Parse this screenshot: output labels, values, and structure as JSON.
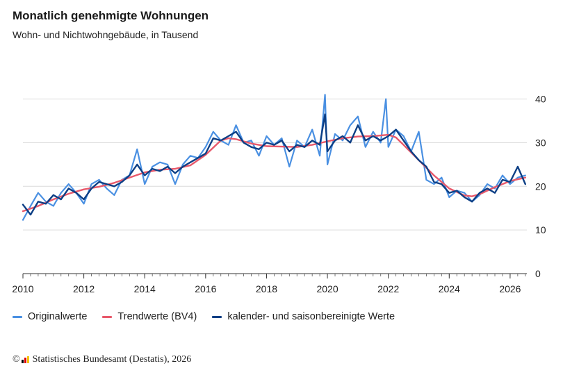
{
  "header": {
    "title": "Monatlich genehmigte Wohnungen",
    "subtitle": "Wohn- und Nichtwohngebäude, in Tausend"
  },
  "legend": {
    "items": [
      {
        "label": "Originalwerte",
        "color": "#4a90e2"
      },
      {
        "label": "Trendwerte (BV4)",
        "color": "#e8596b"
      },
      {
        "label": "kalender- und saisonbereinigte Werte",
        "color": "#0d3f85"
      }
    ]
  },
  "source": {
    "copyright_symbol": "©",
    "text": "Statistisches Bundesamt (Destatis), 2026"
  },
  "chart_data": {
    "type": "line",
    "title": "Monatlich genehmigte Wohnungen",
    "subtitle": "Wohn- und Nichtwohngebäude, in Tausend",
    "xlabel": "",
    "ylabel": "",
    "xlim": [
      2010,
      2026.55
    ],
    "ylim": [
      0,
      42
    ],
    "x_ticks": [
      "2010",
      "2012",
      "2014",
      "2016",
      "2018",
      "2020",
      "2022",
      "2024",
      "2026"
    ],
    "y_ticks": [
      "0",
      "10",
      "20",
      "30",
      "40"
    ],
    "grid": "horizontal",
    "legend_position": "bottom",
    "series": [
      {
        "name": "Originalwerte",
        "color": "#4a90e2",
        "points": [
          [
            2010.0,
            12.3
          ],
          [
            2010.25,
            15.5
          ],
          [
            2010.5,
            18.5
          ],
          [
            2010.75,
            16.5
          ],
          [
            2011.0,
            15.5
          ],
          [
            2011.25,
            18.5
          ],
          [
            2011.5,
            20.5
          ],
          [
            2011.75,
            18.5
          ],
          [
            2012.0,
            16.0
          ],
          [
            2012.25,
            20.5
          ],
          [
            2012.5,
            21.5
          ],
          [
            2012.75,
            19.5
          ],
          [
            2013.0,
            18.0
          ],
          [
            2013.25,
            21.5
          ],
          [
            2013.5,
            22.5
          ],
          [
            2013.75,
            28.5
          ],
          [
            2014.0,
            20.5
          ],
          [
            2014.25,
            24.5
          ],
          [
            2014.5,
            25.5
          ],
          [
            2014.75,
            25.0
          ],
          [
            2015.0,
            20.5
          ],
          [
            2015.25,
            25.0
          ],
          [
            2015.5,
            27.0
          ],
          [
            2015.75,
            26.5
          ],
          [
            2016.0,
            29.0
          ],
          [
            2016.25,
            32.5
          ],
          [
            2016.5,
            30.5
          ],
          [
            2016.75,
            29.5
          ],
          [
            2017.0,
            34.0
          ],
          [
            2017.25,
            30.0
          ],
          [
            2017.5,
            30.5
          ],
          [
            2017.75,
            27.0
          ],
          [
            2018.0,
            31.5
          ],
          [
            2018.25,
            29.5
          ],
          [
            2018.5,
            31.0
          ],
          [
            2018.75,
            24.5
          ],
          [
            2019.0,
            30.5
          ],
          [
            2019.25,
            29.0
          ],
          [
            2019.5,
            33.0
          ],
          [
            2019.75,
            27.0
          ],
          [
            2019.92,
            41.0
          ],
          [
            2020.0,
            25.0
          ],
          [
            2020.25,
            32.0
          ],
          [
            2020.5,
            30.5
          ],
          [
            2020.75,
            34.0
          ],
          [
            2021.0,
            36.0
          ],
          [
            2021.25,
            29.0
          ],
          [
            2021.5,
            32.5
          ],
          [
            2021.75,
            30.0
          ],
          [
            2021.92,
            40.0
          ],
          [
            2022.0,
            29.0
          ],
          [
            2022.25,
            33.0
          ],
          [
            2022.5,
            31.5
          ],
          [
            2022.75,
            28.0
          ],
          [
            2023.0,
            32.5
          ],
          [
            2023.25,
            21.5
          ],
          [
            2023.5,
            20.5
          ],
          [
            2023.75,
            22.0
          ],
          [
            2024.0,
            17.5
          ],
          [
            2024.25,
            19.0
          ],
          [
            2024.5,
            18.5
          ],
          [
            2024.75,
            16.5
          ],
          [
            2025.0,
            18.0
          ],
          [
            2025.25,
            20.5
          ],
          [
            2025.5,
            19.5
          ],
          [
            2025.75,
            22.5
          ],
          [
            2026.0,
            20.5
          ],
          [
            2026.25,
            22.0
          ],
          [
            2026.5,
            22.5
          ]
        ]
      },
      {
        "name": "Trendwerte (BV4)",
        "color": "#e8596b",
        "points": [
          [
            2010.0,
            14.3
          ],
          [
            2010.5,
            15.5
          ],
          [
            2011.0,
            17.0
          ],
          [
            2011.5,
            18.3
          ],
          [
            2012.0,
            19.3
          ],
          [
            2012.5,
            19.9
          ],
          [
            2013.0,
            20.8
          ],
          [
            2013.5,
            22.0
          ],
          [
            2014.0,
            23.2
          ],
          [
            2014.5,
            23.8
          ],
          [
            2015.0,
            24.0
          ],
          [
            2015.5,
            24.8
          ],
          [
            2016.0,
            27.2
          ],
          [
            2016.5,
            30.5
          ],
          [
            2016.75,
            31.0
          ],
          [
            2017.0,
            30.8
          ],
          [
            2017.5,
            29.8
          ],
          [
            2018.0,
            29.2
          ],
          [
            2018.5,
            29.1
          ],
          [
            2019.0,
            29.0
          ],
          [
            2019.5,
            29.5
          ],
          [
            2020.0,
            30.3
          ],
          [
            2020.5,
            31.0
          ],
          [
            2021.0,
            31.4
          ],
          [
            2021.5,
            31.5
          ],
          [
            2022.0,
            31.8
          ],
          [
            2022.25,
            31.2
          ],
          [
            2022.5,
            29.5
          ],
          [
            2023.0,
            26.0
          ],
          [
            2023.5,
            22.5
          ],
          [
            2024.0,
            19.5
          ],
          [
            2024.5,
            17.9
          ],
          [
            2024.75,
            17.7
          ],
          [
            2025.0,
            18.2
          ],
          [
            2025.5,
            19.8
          ],
          [
            2026.0,
            21.2
          ],
          [
            2026.5,
            22.0
          ]
        ]
      },
      {
        "name": "kalender- und saisonbereinigte Werte",
        "color": "#0d3f85",
        "points": [
          [
            2010.0,
            15.8
          ],
          [
            2010.25,
            13.5
          ],
          [
            2010.5,
            16.5
          ],
          [
            2010.75,
            16.0
          ],
          [
            2011.0,
            18.0
          ],
          [
            2011.25,
            17.0
          ],
          [
            2011.5,
            19.5
          ],
          [
            2011.75,
            18.5
          ],
          [
            2012.0,
            17.0
          ],
          [
            2012.25,
            19.5
          ],
          [
            2012.5,
            21.0
          ],
          [
            2012.75,
            20.5
          ],
          [
            2013.0,
            20.0
          ],
          [
            2013.25,
            21.0
          ],
          [
            2013.5,
            22.5
          ],
          [
            2013.75,
            25.0
          ],
          [
            2014.0,
            22.5
          ],
          [
            2014.25,
            24.0
          ],
          [
            2014.5,
            23.5
          ],
          [
            2014.75,
            24.5
          ],
          [
            2015.0,
            23.0
          ],
          [
            2015.25,
            24.5
          ],
          [
            2015.5,
            25.5
          ],
          [
            2015.75,
            26.5
          ],
          [
            2016.0,
            27.5
          ],
          [
            2016.25,
            31.0
          ],
          [
            2016.5,
            30.5
          ],
          [
            2016.75,
            31.5
          ],
          [
            2017.0,
            32.5
          ],
          [
            2017.25,
            30.0
          ],
          [
            2017.5,
            29.0
          ],
          [
            2017.75,
            28.5
          ],
          [
            2018.0,
            30.0
          ],
          [
            2018.25,
            29.5
          ],
          [
            2018.5,
            30.5
          ],
          [
            2018.75,
            28.0
          ],
          [
            2019.0,
            29.5
          ],
          [
            2019.25,
            29.0
          ],
          [
            2019.5,
            30.5
          ],
          [
            2019.75,
            29.5
          ],
          [
            2019.92,
            36.5
          ],
          [
            2020.0,
            28.0
          ],
          [
            2020.25,
            30.5
          ],
          [
            2020.5,
            31.5
          ],
          [
            2020.75,
            30.0
          ],
          [
            2021.0,
            34.0
          ],
          [
            2021.25,
            30.5
          ],
          [
            2021.5,
            31.5
          ],
          [
            2021.75,
            30.5
          ],
          [
            2022.0,
            31.5
          ],
          [
            2022.25,
            33.0
          ],
          [
            2022.5,
            30.5
          ],
          [
            2022.75,
            28.0
          ],
          [
            2023.0,
            26.0
          ],
          [
            2023.25,
            24.5
          ],
          [
            2023.5,
            21.0
          ],
          [
            2023.75,
            20.5
          ],
          [
            2024.0,
            18.5
          ],
          [
            2024.25,
            19.0
          ],
          [
            2024.5,
            17.5
          ],
          [
            2024.75,
            16.5
          ],
          [
            2025.0,
            18.5
          ],
          [
            2025.25,
            19.5
          ],
          [
            2025.5,
            18.5
          ],
          [
            2025.75,
            21.5
          ],
          [
            2026.0,
            21.0
          ],
          [
            2026.25,
            24.5
          ],
          [
            2026.5,
            20.5
          ]
        ]
      }
    ]
  }
}
